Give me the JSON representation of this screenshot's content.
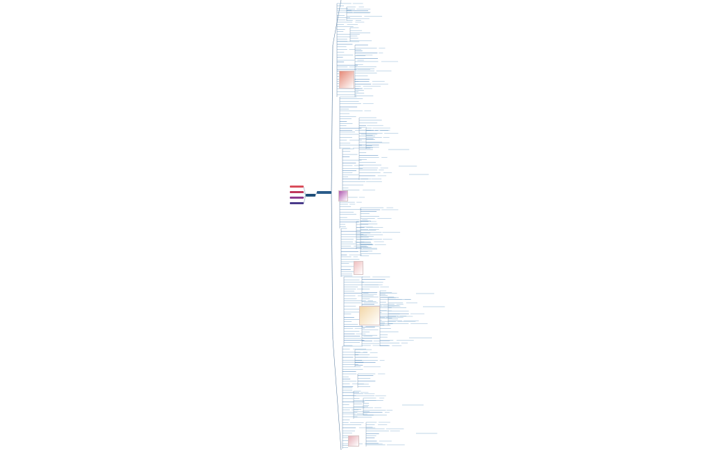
{
  "mindmap": {
    "root": {
      "label": ""
    },
    "main_branch": {
      "label": ""
    },
    "left_nodes": [
      {
        "label": "",
        "color": "#d94c5a"
      },
      {
        "label": "",
        "color": "#c0365c"
      },
      {
        "label": "",
        "color": "#8e3a8f"
      },
      {
        "label": "",
        "color": "#4a3a8a"
      }
    ],
    "colors": {
      "branch_line": "#4a6f94",
      "leaf_underline": "#6fa0c8",
      "highlight_leaf": "#2e6fb0",
      "background": "#ffffff"
    },
    "images": [
      {
        "name": "tissue-diagram-image",
        "tone": "#e58a78"
      },
      {
        "name": "purple-stain-image",
        "tone": "#b05ab0"
      },
      {
        "name": "chart-image",
        "tone": "#f0c0c0"
      },
      {
        "name": "flowchart-image",
        "tone": "#f3d7a8"
      },
      {
        "name": "small-diagram-image",
        "tone": "#e7b0b8"
      }
    ]
  }
}
